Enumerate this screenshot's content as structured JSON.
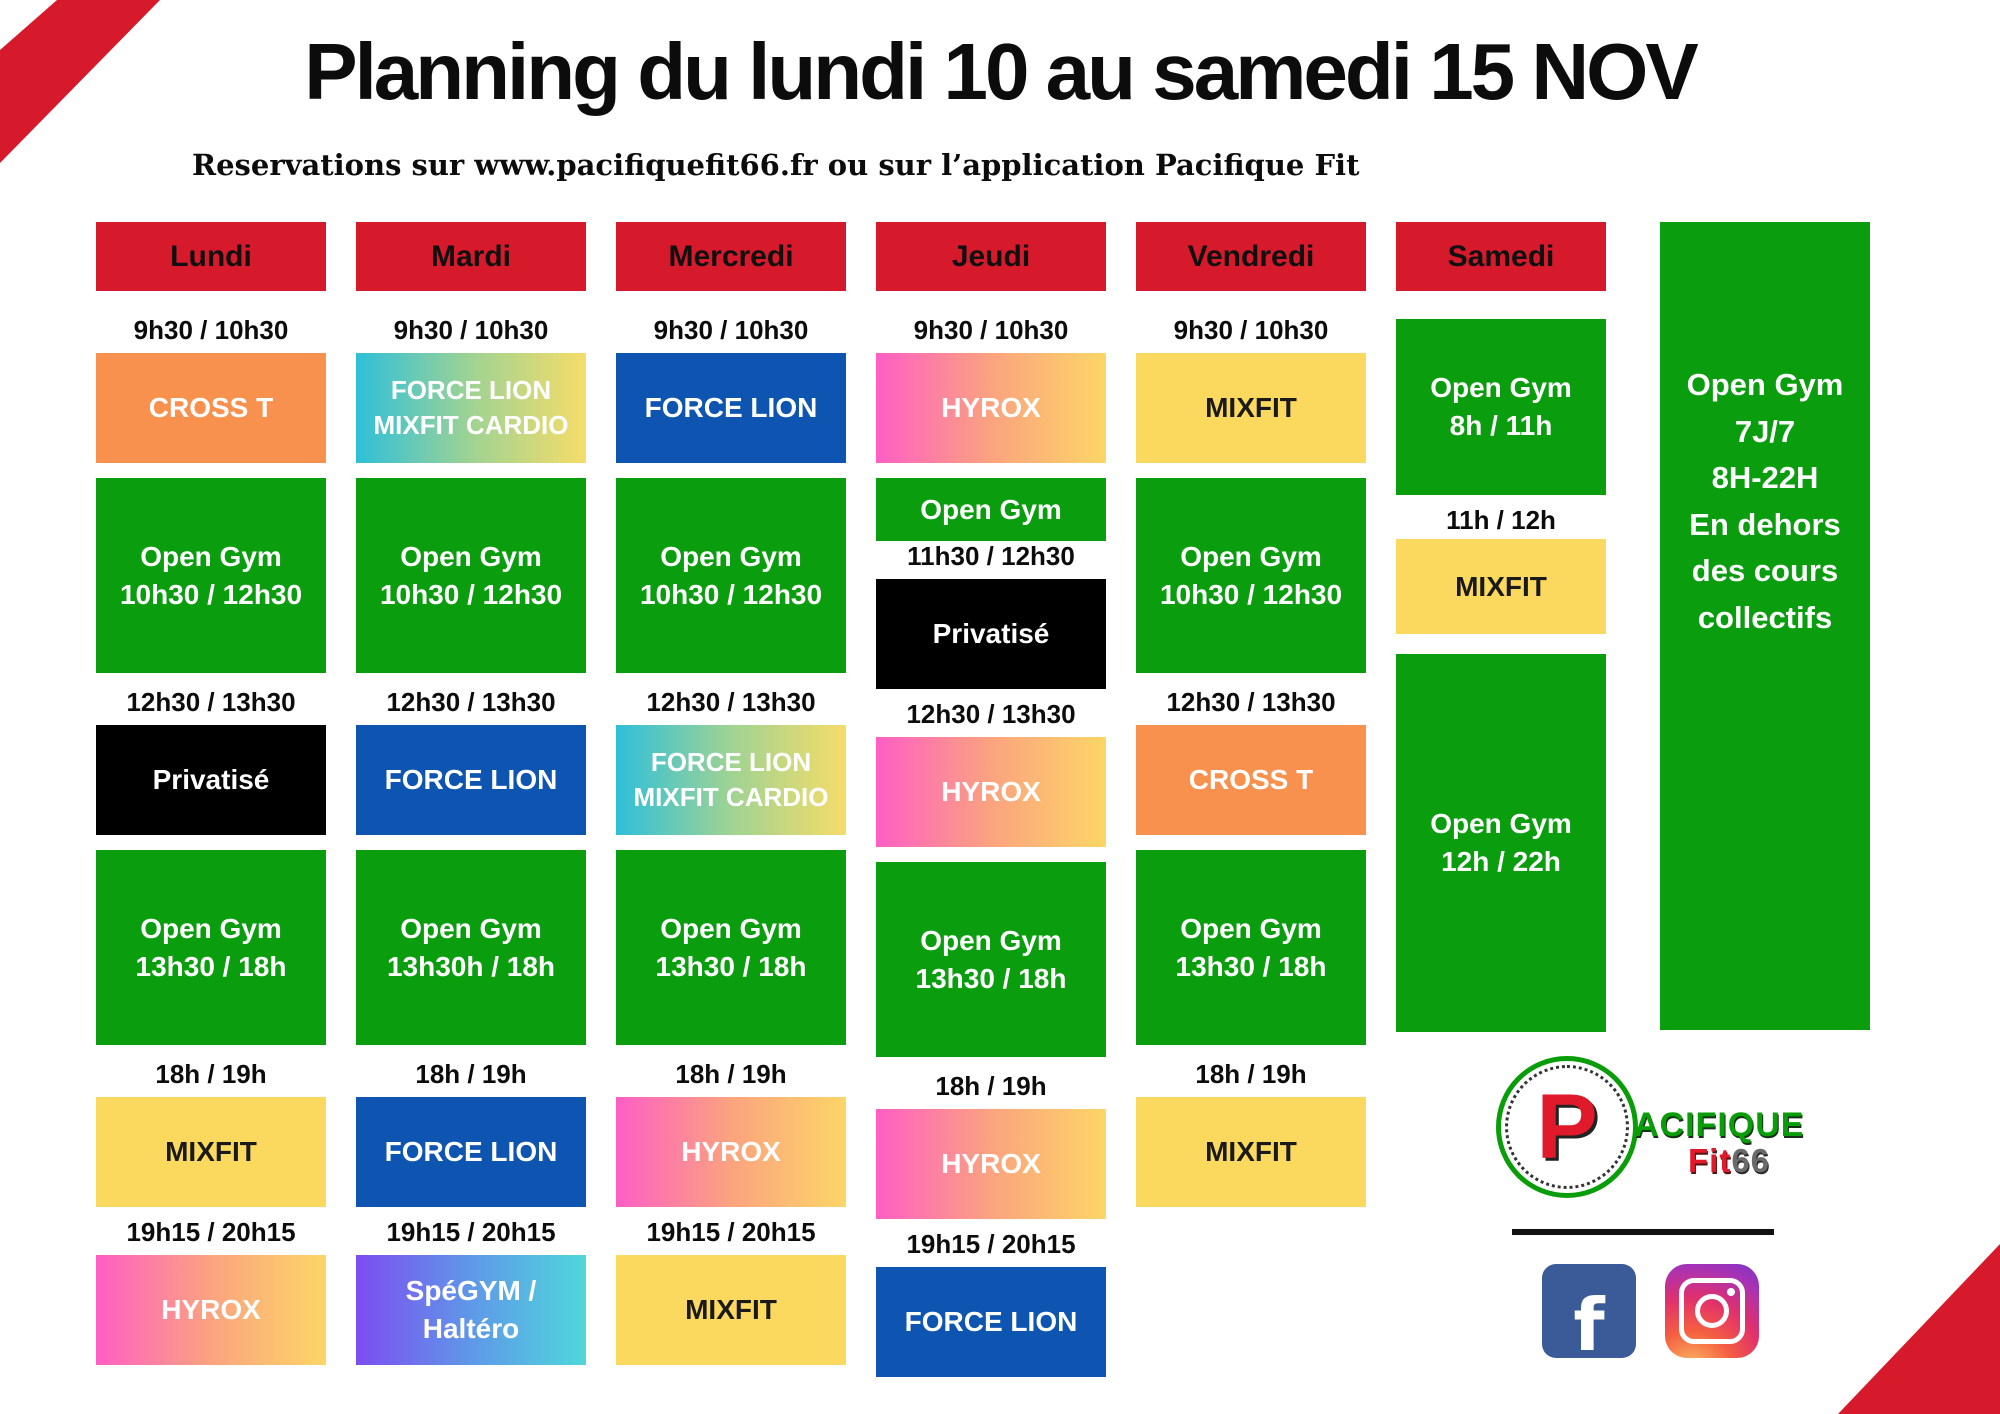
{
  "title": "Planning du lundi 10 au samedi 15 NOV",
  "subtitle": "Reservations sur www.pacifiquefit66.fr ou sur l’application Pacifique Fit",
  "palette": {
    "header_red": "#d6192b",
    "green": "#0a9d0e",
    "yellow": "#fbd95e",
    "orange": "#f9914e",
    "blue": "#0e55b2",
    "black": "#000000",
    "hyrox_gradient": [
      "#fe5ec4",
      "#fba37f",
      "#fcd666"
    ],
    "forcelion_mixfit_gradient": [
      "#2fbfda",
      "#9fd393",
      "#f6dc69"
    ],
    "spegym_gradient": [
      "#7c4df1",
      "#5f98e8",
      "#4fd7db"
    ]
  },
  "days": [
    {
      "label": "Lundi",
      "slots": [
        {
          "type": "time",
          "text": "9h30 / 10h30"
        },
        {
          "type": "cell",
          "size": "cell",
          "color": "orange",
          "lines": [
            "CROSS T"
          ]
        },
        {
          "type": "cell",
          "size": "open",
          "color": "green",
          "lines": [
            "Open Gym",
            "10h30 / 12h30"
          ]
        },
        {
          "type": "time",
          "text": "12h30 / 13h30"
        },
        {
          "type": "cell",
          "size": "cell",
          "color": "black",
          "lines": [
            "Privatisé"
          ]
        },
        {
          "type": "cell",
          "size": "open",
          "color": "green",
          "lines": [
            "Open Gym",
            "13h30 / 18h"
          ]
        },
        {
          "type": "time",
          "text": "18h / 19h"
        },
        {
          "type": "cell",
          "size": "cell",
          "color": "yellow",
          "lines": [
            "MIXFIT"
          ]
        },
        {
          "type": "time",
          "text": "19h15 / 20h15"
        },
        {
          "type": "cell",
          "size": "cell",
          "color": "hyrox",
          "lines": [
            "HYROX"
          ]
        }
      ]
    },
    {
      "label": "Mardi",
      "slots": [
        {
          "type": "time",
          "text": "9h30 / 10h30"
        },
        {
          "type": "cell",
          "size": "cell",
          "color": "flmc",
          "small": true,
          "lines": [
            "FORCE LION",
            "MIXFIT CARDIO"
          ]
        },
        {
          "type": "cell",
          "size": "open",
          "color": "green",
          "lines": [
            "Open Gym",
            "10h30 / 12h30"
          ]
        },
        {
          "type": "time",
          "text": "12h30 / 13h30"
        },
        {
          "type": "cell",
          "size": "cell",
          "color": "blue",
          "lines": [
            "FORCE LION"
          ]
        },
        {
          "type": "cell",
          "size": "open",
          "color": "green",
          "lines": [
            "Open Gym",
            "13h30h / 18h"
          ]
        },
        {
          "type": "time",
          "text": "18h / 19h"
        },
        {
          "type": "cell",
          "size": "cell",
          "color": "blue",
          "lines": [
            "FORCE LION"
          ]
        },
        {
          "type": "time",
          "text": "19h15 / 20h15"
        },
        {
          "type": "cell",
          "size": "cell",
          "color": "spe",
          "lines": [
            "SpéGYM /",
            "Haltéro"
          ]
        }
      ]
    },
    {
      "label": "Mercredi",
      "slots": [
        {
          "type": "time",
          "text": "9h30 / 10h30"
        },
        {
          "type": "cell",
          "size": "cell",
          "color": "blue",
          "lines": [
            "FORCE LION"
          ]
        },
        {
          "type": "cell",
          "size": "open",
          "color": "green",
          "lines": [
            "Open Gym",
            "10h30 / 12h30"
          ]
        },
        {
          "type": "time",
          "text": "12h30 / 13h30"
        },
        {
          "type": "cell",
          "size": "cell",
          "color": "flmc",
          "small": true,
          "lines": [
            "FORCE LION",
            "MIXFIT CARDIO"
          ]
        },
        {
          "type": "cell",
          "size": "open",
          "color": "green",
          "lines": [
            "Open Gym",
            "13h30 / 18h"
          ]
        },
        {
          "type": "time",
          "text": "18h / 19h"
        },
        {
          "type": "cell",
          "size": "cell",
          "color": "hyrox",
          "lines": [
            "HYROX"
          ]
        },
        {
          "type": "time",
          "text": "19h15 / 20h15"
        },
        {
          "type": "cell",
          "size": "cell",
          "color": "yellow",
          "lines": [
            "MIXFIT"
          ]
        }
      ]
    },
    {
      "label": "Jeudi",
      "slots": [
        {
          "type": "time",
          "text": "9h30 / 10h30"
        },
        {
          "type": "cell",
          "size": "cell",
          "color": "hyrox",
          "lines": [
            "HYROX"
          ]
        },
        {
          "type": "cell",
          "size": "mini",
          "color": "green",
          "lines": [
            "Open Gym"
          ]
        },
        {
          "type": "time",
          "text": "11h30 / 12h30"
        },
        {
          "type": "cell",
          "size": "cell",
          "color": "black",
          "lines": [
            "Privatisé"
          ]
        },
        {
          "type": "time",
          "text": "12h30 / 13h30"
        },
        {
          "type": "cell",
          "size": "cell",
          "color": "hyrox",
          "lines": [
            "HYROX"
          ]
        },
        {
          "type": "cell",
          "size": "open",
          "color": "green",
          "lines": [
            "Open Gym",
            "13h30 / 18h"
          ]
        },
        {
          "type": "time",
          "text": "18h / 19h"
        },
        {
          "type": "cell",
          "size": "cell",
          "color": "hyrox",
          "lines": [
            "HYROX"
          ]
        },
        {
          "type": "time",
          "text": "19h15 / 20h15"
        },
        {
          "type": "cell",
          "size": "cell",
          "color": "blue",
          "lines": [
            "FORCE LION"
          ]
        }
      ]
    },
    {
      "label": "Vendredi",
      "slots": [
        {
          "type": "time",
          "text": "9h30 / 10h30"
        },
        {
          "type": "cell",
          "size": "cell",
          "color": "yellow",
          "lines": [
            "MIXFIT"
          ]
        },
        {
          "type": "cell",
          "size": "open",
          "color": "green",
          "lines": [
            "Open Gym",
            "10h30 / 12h30"
          ]
        },
        {
          "type": "time",
          "text": "12h30 / 13h30"
        },
        {
          "type": "cell",
          "size": "cell",
          "color": "orange",
          "lines": [
            "CROSS T"
          ]
        },
        {
          "type": "cell",
          "size": "open",
          "color": "green",
          "lines": [
            "Open Gym",
            "13h30 / 18h"
          ]
        },
        {
          "type": "time",
          "text": "18h / 19h"
        },
        {
          "type": "cell",
          "size": "cell",
          "color": "yellow",
          "lines": [
            "MIXFIT"
          ]
        }
      ]
    },
    {
      "label": "Samedi",
      "slots": [
        {
          "type": "cell",
          "size": "satOpen",
          "color": "green",
          "lines": [
            "Open Gym",
            "8h / 11h"
          ]
        },
        {
          "type": "time",
          "text": "11h / 12h"
        },
        {
          "type": "cell",
          "size": "satMix",
          "color": "yellow",
          "lines": [
            "MIXFIT"
          ]
        },
        {
          "type": "cell",
          "size": "satTall",
          "color": "green",
          "lines": [
            "Open Gym",
            "12h / 22h"
          ]
        }
      ]
    }
  ],
  "side_panel": {
    "lines": [
      "Open Gym",
      "7J/7",
      "8H-22H",
      "En dehors",
      "des cours",
      "collectifs"
    ]
  },
  "logo": {
    "monogram": "P",
    "wordmark_top": "ACIFIQUE",
    "wordmark_bottom_red": "Fit",
    "wordmark_bottom_gray": "66"
  },
  "social": {
    "facebook_glyph": "f"
  }
}
